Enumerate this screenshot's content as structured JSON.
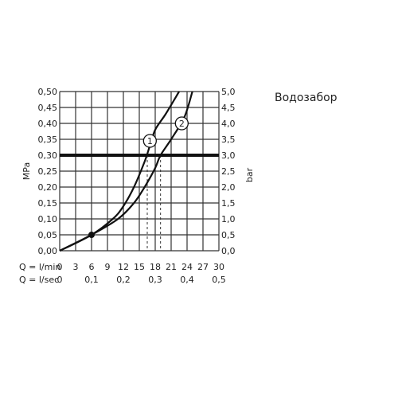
{
  "caption": "Водозабор",
  "chart_data": {
    "type": "line",
    "title": "",
    "ylabel_left": "MPa",
    "ylabel_right": "bar",
    "x_row1_label": "Q = l/min",
    "x_row2_label": "Q = l/sec",
    "xlim": [
      0,
      30
    ],
    "ylim": [
      0,
      0.5
    ],
    "x_ticks": [
      "0",
      "3",
      "6",
      "9",
      "12",
      "15",
      "18",
      "21",
      "24",
      "27",
      "30"
    ],
    "x_sec_ticks": [
      {
        "x": 0,
        "label": "0"
      },
      {
        "x": 6,
        "label": "0,1"
      },
      {
        "x": 12,
        "label": "0,2"
      },
      {
        "x": 18,
        "label": "0,3"
      },
      {
        "x": 24,
        "label": "0,4"
      },
      {
        "x": 30,
        "label": "0,5"
      }
    ],
    "y_ticks_left": [
      "0,00",
      "0,05",
      "0,10",
      "0,15",
      "0,20",
      "0,25",
      "0,30",
      "0,35",
      "0,40",
      "0,45",
      "0,50"
    ],
    "y_ticks_right": [
      "0,0",
      "0,5",
      "1,0",
      "1,5",
      "2,0",
      "2,5",
      "3,0",
      "3,5",
      "4,0",
      "4,5",
      "5,0"
    ],
    "reference_line": {
      "y": 0.3
    },
    "point": {
      "x": 6,
      "y": 0.05
    },
    "series": [
      {
        "name": "1",
        "marker_at": {
          "x": 17,
          "y": 0.345
        },
        "drop_x": 16.5,
        "points": [
          [
            0,
            0
          ],
          [
            6,
            0.05
          ],
          [
            10,
            0.1
          ],
          [
            12,
            0.14
          ],
          [
            14,
            0.2
          ],
          [
            16,
            0.28
          ],
          [
            17,
            0.33
          ],
          [
            18,
            0.38
          ],
          [
            20,
            0.43
          ],
          [
            22.5,
            0.5
          ]
        ]
      },
      {
        "name": "2",
        "marker_at": {
          "x": 23,
          "y": 0.4
        },
        "drop_x": 19,
        "points": [
          [
            0,
            0
          ],
          [
            6,
            0.05
          ],
          [
            11,
            0.1
          ],
          [
            14,
            0.15
          ],
          [
            16,
            0.2
          ],
          [
            18,
            0.26
          ],
          [
            19,
            0.3
          ],
          [
            21,
            0.35
          ],
          [
            23.5,
            0.42
          ],
          [
            25,
            0.5
          ]
        ]
      }
    ]
  }
}
